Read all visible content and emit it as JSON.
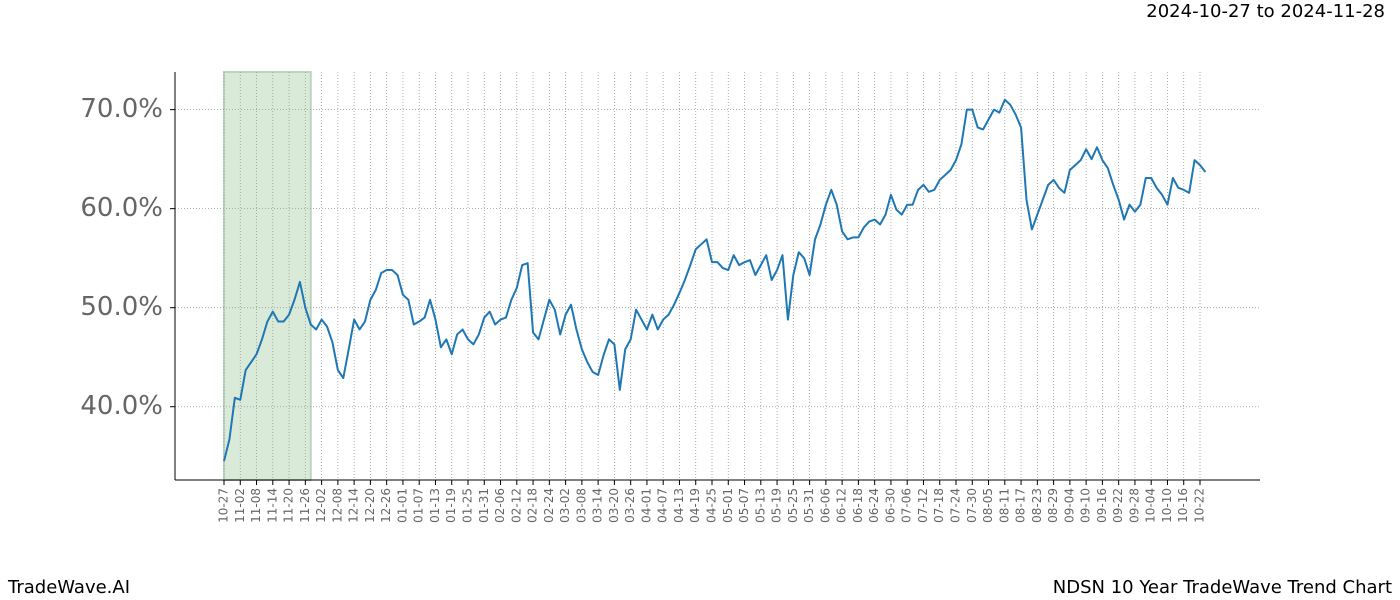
{
  "chart_data": {
    "type": "line",
    "subtitle": "2024-10-27 to 2024-11-28",
    "footer_left": "TradeWave.AI",
    "footer_right": "NDSN 10 Year TradeWave Trend Chart",
    "categories": [
      "10-27",
      null,
      null,
      "11-02",
      null,
      null,
      "11-08",
      null,
      null,
      "11-14",
      null,
      null,
      "11-20",
      null,
      null,
      "11-26",
      null,
      null,
      "12-02",
      null,
      null,
      "12-08",
      null,
      null,
      "12-14",
      null,
      null,
      "12-20",
      null,
      null,
      "12-26",
      null,
      null,
      "01-01",
      null,
      null,
      "01-07",
      null,
      null,
      "01-13",
      null,
      null,
      "01-19",
      null,
      null,
      "01-25",
      null,
      null,
      "01-31",
      null,
      null,
      "02-06",
      null,
      null,
      "02-12",
      null,
      null,
      "02-18",
      null,
      null,
      "02-24",
      null,
      null,
      "03-02",
      null,
      null,
      "03-08",
      null,
      null,
      "03-14",
      null,
      null,
      "03-20",
      null,
      null,
      "03-26",
      null,
      null,
      "04-01",
      null,
      null,
      "04-07",
      null,
      null,
      "04-13",
      null,
      null,
      "04-19",
      null,
      null,
      "04-25",
      null,
      null,
      "05-01",
      null,
      null,
      "05-07",
      null,
      null,
      "05-13",
      null,
      null,
      "05-19",
      null,
      null,
      "05-25",
      null,
      null,
      "05-31",
      null,
      null,
      "06-06",
      null,
      null,
      "06-12",
      null,
      null,
      "06-18",
      null,
      null,
      "06-24",
      null,
      null,
      "06-30",
      null,
      null,
      "07-06",
      null,
      null,
      "07-12",
      null,
      null,
      "07-18",
      null,
      null,
      "07-24",
      null,
      null,
      "07-30",
      null,
      null,
      "08-05",
      null,
      null,
      "08-11",
      null,
      null,
      "08-17",
      null,
      null,
      "08-23",
      null,
      null,
      "08-29",
      null,
      null,
      "09-04",
      null,
      null,
      "09-10",
      null,
      null,
      "09-16",
      null,
      null,
      "09-22",
      null,
      null,
      "09-28",
      null,
      null,
      "10-04",
      null,
      null,
      "10-10",
      null,
      null,
      "10-16",
      null,
      null,
      "10-22",
      null
    ],
    "values": [
      34.5,
      36.7,
      40.9,
      40.7,
      43.7,
      44.5,
      45.3,
      46.8,
      48.6,
      49.6,
      48.6,
      48.6,
      49.3,
      50.8,
      52.6,
      50.0,
      48.3,
      47.8,
      48.8,
      48.1,
      46.5,
      43.7,
      42.9,
      45.8,
      48.8,
      47.8,
      48.6,
      50.8,
      51.8,
      53.5,
      53.8,
      53.8,
      53.3,
      51.3,
      50.8,
      48.3,
      48.6,
      49.0,
      50.8,
      48.8,
      46.0,
      46.8,
      45.3,
      47.3,
      47.8,
      46.8,
      46.3,
      47.3,
      49.0,
      49.6,
      48.3,
      48.8,
      49.0,
      50.8,
      52.0,
      54.3,
      54.5,
      47.5,
      46.8,
      48.8,
      50.8,
      49.8,
      47.3,
      49.3,
      50.3,
      47.8,
      45.8,
      44.5,
      43.5,
      43.2,
      45.2,
      46.8,
      46.3,
      41.7,
      45.8,
      46.8,
      49.8,
      48.8,
      47.8,
      49.3,
      47.8,
      48.8,
      49.3,
      50.3,
      51.5,
      52.8,
      54.3,
      55.9,
      56.4,
      56.9,
      54.6,
      54.6,
      54.0,
      53.8,
      55.3,
      54.3,
      54.6,
      54.8,
      53.3,
      54.3,
      55.3,
      52.8,
      53.8,
      55.3,
      48.8,
      53.3,
      55.6,
      55.0,
      53.3,
      56.9,
      58.4,
      60.4,
      61.9,
      60.4,
      57.7,
      56.9,
      57.1,
      57.1,
      58.1,
      58.7,
      58.9,
      58.4,
      59.4,
      61.4,
      59.9,
      59.4,
      60.4,
      60.4,
      61.9,
      62.4,
      61.7,
      61.9,
      62.9,
      63.4,
      63.9,
      64.9,
      66.5,
      70.0,
      70.0,
      68.2,
      68.0,
      69.0,
      70.0,
      69.7,
      71.0,
      70.5,
      69.5,
      68.2,
      60.9,
      57.9,
      59.4,
      60.9,
      62.4,
      62.9,
      62.1,
      61.6,
      63.9,
      64.4,
      64.9,
      66.0,
      65.0,
      66.2,
      64.9,
      64.1,
      62.4,
      60.9,
      58.9,
      60.4,
      59.7,
      60.4,
      63.1,
      63.1,
      62.1,
      61.4,
      60.4,
      63.1,
      62.1,
      61.9,
      61.6,
      64.9,
      64.4,
      63.7
    ],
    "color": "#1f77b4",
    "shaded_range": [
      0,
      16
    ],
    "shade_color": "#d9ead9",
    "ylim": [
      32.6,
      73.8
    ],
    "yticks": [
      {
        "value": 40,
        "label": "40.0%"
      },
      {
        "value": 50,
        "label": "50.0%"
      },
      {
        "value": 60,
        "label": "60.0%"
      },
      {
        "value": 70,
        "label": "70.0%"
      }
    ],
    "grid": true
  }
}
